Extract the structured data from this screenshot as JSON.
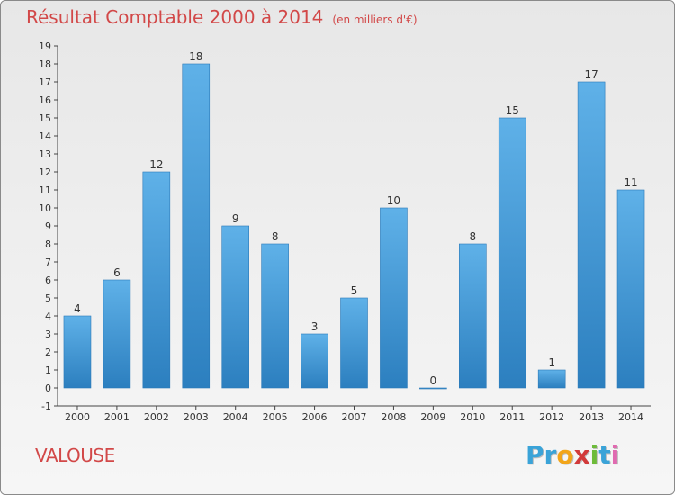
{
  "header": {
    "title": "Résultat Comptable 2000 à 2014",
    "subtitle": "(en milliers d'€)"
  },
  "footer": {
    "commune": "VALOUSE",
    "brand": [
      "P",
      "r",
      "o",
      "x",
      "i",
      "t",
      "i"
    ],
    "brand_colors": [
      "#3aa3d8",
      "#3aa3d8",
      "#f2a51a",
      "#d23a3a",
      "#6dbb3a",
      "#3aa3d8",
      "#e06ab0"
    ]
  },
  "chart_data": {
    "type": "bar",
    "categories": [
      "2000",
      "2001",
      "2002",
      "2003",
      "2004",
      "2005",
      "2006",
      "2007",
      "2008",
      "2009",
      "2010",
      "2011",
      "2012",
      "2013",
      "2014"
    ],
    "values": [
      4,
      6,
      12,
      18,
      9,
      8,
      3,
      5,
      10,
      0,
      8,
      15,
      1,
      17,
      11
    ],
    "data_labels": [
      "4",
      "6",
      "12",
      "18",
      "9",
      "8",
      "3",
      "5",
      "10",
      "0",
      "8",
      "15",
      "1",
      "17",
      "11"
    ],
    "yticks": [
      "-1",
      "0",
      "1",
      "2",
      "3",
      "4",
      "5",
      "6",
      "7",
      "8",
      "9",
      "10",
      "11",
      "12",
      "13",
      "14",
      "15",
      "16",
      "17",
      "18",
      "19"
    ],
    "ylim": [
      -1,
      19
    ],
    "bar_color": "#4a9fdc",
    "title": "Résultat Comptable 2000 à 2014",
    "xlabel": "",
    "ylabel": "",
    "grid": false
  }
}
